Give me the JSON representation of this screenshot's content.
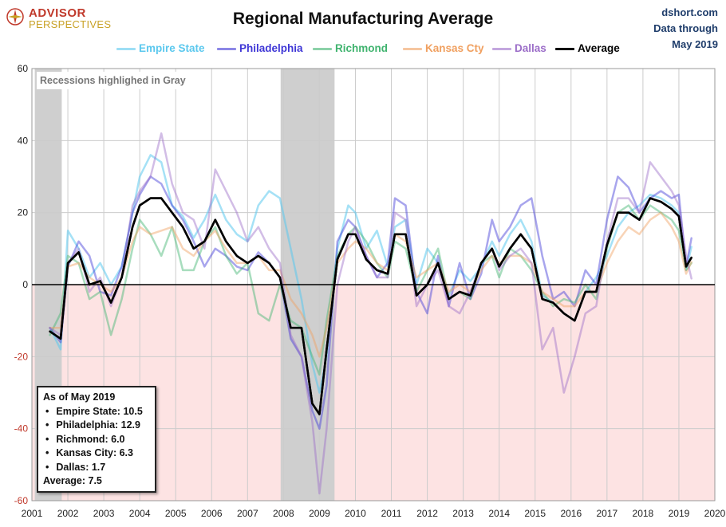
{
  "header": {
    "brand_line1": "ADVISOR",
    "brand_line2": "PERSPECTIVES",
    "title": "Regional Manufacturing Average",
    "source_line1": "dshort.com",
    "source_line2": "Data through",
    "source_line3": "May 2019"
  },
  "recession_note": "Recessions highlighed in Gray",
  "infobox": {
    "heading": "As of May 2019",
    "items": [
      "Empire State: 10.5",
      "Philadelphia: 12.9",
      "Richmond: 6.0",
      "Kansas City: 6.3",
      "Dallas:  1.7"
    ],
    "average": "Average: 7.5"
  },
  "colors": {
    "empire": "#5bc8ee",
    "philadelphia": "#3f37d6",
    "richmond": "#3fb36e",
    "kansas": "#f0a060",
    "dallas": "#9b6dc8",
    "average": "#000000",
    "recession": "#cfcfcf",
    "negative_fill": "#fde3e3",
    "grid": "#cccccc"
  },
  "chart_data": {
    "type": "line",
    "title": "Regional Manufacturing Average",
    "ylim": [
      -60,
      60
    ],
    "xlim": [
      2001,
      2020
    ],
    "yticks": [
      -60,
      -40,
      -20,
      0,
      20,
      40,
      60
    ],
    "xticks": [
      2001,
      2002,
      2003,
      2004,
      2005,
      2006,
      2007,
      2008,
      2009,
      2010,
      2011,
      2012,
      2013,
      2014,
      2015,
      2016,
      2017,
      2018,
      2019,
      2020
    ],
    "grid": true,
    "legend": "top-center",
    "recessions": [
      [
        2001.08,
        2001.83
      ],
      [
        2007.92,
        2009.42
      ]
    ],
    "series": [
      {
        "name": "Empire State",
        "color": "#5bc8ee",
        "opacity": 0.55,
        "width": 2.5,
        "x": [
          2001.5,
          2001.8,
          2002.0,
          2002.3,
          2002.6,
          2002.9,
          2003.2,
          2003.5,
          2003.8,
          2004.0,
          2004.3,
          2004.6,
          2004.9,
          2005.2,
          2005.5,
          2005.8,
          2006.1,
          2006.4,
          2006.7,
          2007.0,
          2007.3,
          2007.6,
          2007.9,
          2008.2,
          2008.5,
          2008.8,
          2009.0,
          2009.2,
          2009.5,
          2009.8,
          2010.0,
          2010.3,
          2010.6,
          2010.9,
          2011.1,
          2011.4,
          2011.7,
          2012.0,
          2012.3,
          2012.6,
          2012.9,
          2013.2,
          2013.5,
          2013.8,
          2014.0,
          2014.3,
          2014.6,
          2014.9,
          2015.2,
          2015.5,
          2015.8,
          2016.1,
          2016.4,
          2016.7,
          2017.0,
          2017.3,
          2017.6,
          2017.9,
          2018.2,
          2018.5,
          2018.8,
          2019.0,
          2019.2,
          2019.35
        ],
        "y": [
          -12,
          -18,
          15,
          10,
          2,
          6,
          0,
          5,
          20,
          30,
          36,
          34,
          22,
          19,
          13,
          18,
          25,
          18,
          14,
          12,
          22,
          26,
          24,
          10,
          -4,
          -22,
          -30,
          -20,
          10,
          22,
          20,
          10,
          15,
          5,
          16,
          18,
          0,
          10,
          6,
          -3,
          4,
          1,
          5,
          12,
          8,
          14,
          18,
          12,
          -3,
          -5,
          -8,
          -10,
          -2,
          2,
          8,
          16,
          20,
          22,
          25,
          24,
          22,
          20,
          4,
          10.5
        ]
      },
      {
        "name": "Philadelphia",
        "color": "#3f37d6",
        "opacity": 0.45,
        "width": 2.5,
        "x": [
          2001.5,
          2001.8,
          2002.0,
          2002.3,
          2002.6,
          2002.9,
          2003.2,
          2003.5,
          2003.8,
          2004.0,
          2004.3,
          2004.6,
          2004.9,
          2005.2,
          2005.5,
          2005.8,
          2006.1,
          2006.4,
          2006.7,
          2007.0,
          2007.3,
          2007.6,
          2007.9,
          2008.2,
          2008.5,
          2008.8,
          2009.0,
          2009.2,
          2009.5,
          2009.8,
          2010.0,
          2010.3,
          2010.6,
          2010.9,
          2011.1,
          2011.4,
          2011.7,
          2012.0,
          2012.3,
          2012.6,
          2012.9,
          2013.2,
          2013.5,
          2013.8,
          2014.0,
          2014.3,
          2014.6,
          2014.9,
          2015.2,
          2015.5,
          2015.8,
          2016.1,
          2016.4,
          2016.7,
          2017.0,
          2017.3,
          2017.6,
          2017.9,
          2018.2,
          2018.5,
          2018.8,
          2019.0,
          2019.2,
          2019.35
        ],
        "y": [
          -12,
          -16,
          5,
          12,
          8,
          -2,
          -3,
          5,
          20,
          25,
          30,
          28,
          22,
          18,
          12,
          5,
          10,
          8,
          5,
          4,
          9,
          6,
          2,
          -15,
          -20,
          -35,
          -40,
          -28,
          12,
          18,
          16,
          8,
          2,
          6,
          24,
          22,
          -2,
          -8,
          8,
          -6,
          6,
          -4,
          3,
          18,
          12,
          16,
          22,
          24,
          8,
          -4,
          -2,
          -6,
          4,
          0,
          18,
          30,
          27,
          20,
          24,
          26,
          24,
          25,
          5,
          12.9
        ]
      },
      {
        "name": "Richmond",
        "color": "#3fb36e",
        "opacity": 0.45,
        "width": 2.5,
        "x": [
          2001.5,
          2001.8,
          2002.0,
          2002.3,
          2002.6,
          2002.9,
          2003.2,
          2003.5,
          2003.8,
          2004.0,
          2004.3,
          2004.6,
          2004.9,
          2005.2,
          2005.5,
          2005.8,
          2006.1,
          2006.4,
          2006.7,
          2007.0,
          2007.3,
          2007.6,
          2007.9,
          2008.2,
          2008.5,
          2008.8,
          2009.0,
          2009.2,
          2009.5,
          2009.8,
          2010.0,
          2010.3,
          2010.6,
          2010.9,
          2011.1,
          2011.4,
          2011.7,
          2012.0,
          2012.3,
          2012.6,
          2012.9,
          2013.2,
          2013.5,
          2013.8,
          2014.0,
          2014.3,
          2014.6,
          2014.9,
          2015.2,
          2015.5,
          2015.8,
          2016.1,
          2016.4,
          2016.7,
          2017.0,
          2017.3,
          2017.6,
          2017.9,
          2018.2,
          2018.5,
          2018.8,
          2019.0,
          2019.2,
          2019.35
        ],
        "y": [
          -14,
          -8,
          8,
          6,
          -4,
          -2,
          -14,
          -4,
          10,
          18,
          14,
          8,
          16,
          4,
          4,
          12,
          16,
          8,
          3,
          6,
          -8,
          -10,
          0,
          -10,
          -12,
          -20,
          -25,
          -10,
          8,
          14,
          16,
          12,
          6,
          2,
          12,
          10,
          -2,
          4,
          10,
          -4,
          -2,
          -4,
          6,
          8,
          2,
          10,
          8,
          4,
          -2,
          -6,
          -4,
          -5,
          0,
          -4,
          10,
          20,
          22,
          18,
          22,
          20,
          18,
          15,
          4,
          6.0
        ]
      },
      {
        "name": "Kansas Cty",
        "color": "#f0a060",
        "opacity": 0.45,
        "width": 2.5,
        "x": [
          2001.5,
          2001.8,
          2002.0,
          2002.3,
          2002.6,
          2002.9,
          2003.2,
          2003.5,
          2003.8,
          2004.0,
          2004.3,
          2004.6,
          2004.9,
          2005.2,
          2005.5,
          2005.8,
          2006.1,
          2006.4,
          2006.7,
          2007.0,
          2007.3,
          2007.6,
          2007.9,
          2008.2,
          2008.5,
          2008.8,
          2009.0,
          2009.2,
          2009.5,
          2009.8,
          2010.0,
          2010.3,
          2010.6,
          2010.9,
          2011.1,
          2011.4,
          2011.7,
          2012.0,
          2012.3,
          2012.6,
          2012.9,
          2013.2,
          2013.5,
          2013.8,
          2014.0,
          2014.3,
          2014.6,
          2014.9,
          2015.2,
          2015.5,
          2015.8,
          2016.1,
          2016.4,
          2016.7,
          2017.0,
          2017.3,
          2017.6,
          2017.9,
          2018.2,
          2018.5,
          2018.8,
          2019.0,
          2019.2,
          2019.35
        ],
        "y": [
          -12,
          -12,
          5,
          6,
          2,
          0,
          -2,
          2,
          12,
          16,
          14,
          15,
          16,
          10,
          8,
          12,
          15,
          10,
          6,
          6,
          8,
          4,
          4,
          -4,
          -8,
          -14,
          -20,
          -12,
          6,
          10,
          12,
          10,
          6,
          4,
          14,
          12,
          2,
          4,
          6,
          -2,
          0,
          -2,
          4,
          8,
          6,
          8,
          8,
          6,
          -2,
          -4,
          -6,
          -6,
          -2,
          -2,
          6,
          12,
          16,
          14,
          18,
          20,
          16,
          12,
          3,
          6.3
        ]
      },
      {
        "name": "Dallas",
        "color": "#9b6dc8",
        "opacity": 0.45,
        "width": 2.5,
        "x": [
          2001.5,
          2001.8,
          2002.0,
          2002.3,
          2002.6,
          2002.9,
          2003.2,
          2003.5,
          2003.8,
          2004.0,
          2004.3,
          2004.6,
          2004.9,
          2005.2,
          2005.5,
          2005.8,
          2006.1,
          2006.4,
          2006.7,
          2007.0,
          2007.3,
          2007.6,
          2007.9,
          2008.2,
          2008.5,
          2008.8,
          2009.0,
          2009.2,
          2009.5,
          2009.8,
          2010.0,
          2010.3,
          2010.6,
          2010.9,
          2011.1,
          2011.4,
          2011.7,
          2012.0,
          2012.3,
          2012.6,
          2012.9,
          2013.2,
          2013.5,
          2013.8,
          2014.0,
          2014.3,
          2014.6,
          2014.9,
          2015.2,
          2015.5,
          2015.8,
          2016.1,
          2016.4,
          2016.7,
          2017.0,
          2017.3,
          2017.6,
          2017.9,
          2018.2,
          2018.5,
          2018.8,
          2019.0,
          2019.2,
          2019.35
        ],
        "y": [
          -12,
          -14,
          6,
          10,
          -2,
          2,
          -6,
          2,
          22,
          26,
          30,
          42,
          28,
          20,
          18,
          10,
          32,
          26,
          20,
          12,
          16,
          10,
          6,
          -14,
          -20,
          -38,
          -58,
          -40,
          0,
          12,
          16,
          8,
          2,
          2,
          20,
          18,
          -6,
          0,
          4,
          -6,
          -8,
          -2,
          6,
          10,
          4,
          8,
          10,
          6,
          -18,
          -12,
          -30,
          -20,
          -8,
          -6,
          12,
          24,
          24,
          20,
          34,
          30,
          26,
          22,
          8,
          1.7
        ]
      },
      {
        "name": "Average",
        "color": "#000000",
        "opacity": 1,
        "width": 2.5,
        "x": [
          2001.5,
          2001.8,
          2002.0,
          2002.3,
          2002.6,
          2002.9,
          2003.2,
          2003.5,
          2003.8,
          2004.0,
          2004.3,
          2004.6,
          2004.9,
          2005.2,
          2005.5,
          2005.8,
          2006.1,
          2006.4,
          2006.7,
          2007.0,
          2007.3,
          2007.6,
          2007.9,
          2008.2,
          2008.5,
          2008.8,
          2009.0,
          2009.2,
          2009.5,
          2009.8,
          2010.0,
          2010.3,
          2010.6,
          2010.9,
          2011.1,
          2011.4,
          2011.7,
          2012.0,
          2012.3,
          2012.6,
          2012.9,
          2013.2,
          2013.5,
          2013.8,
          2014.0,
          2014.3,
          2014.6,
          2014.9,
          2015.2,
          2015.5,
          2015.8,
          2016.1,
          2016.4,
          2016.7,
          2017.0,
          2017.3,
          2017.6,
          2017.9,
          2018.2,
          2018.5,
          2018.8,
          2019.0,
          2019.2,
          2019.35
        ],
        "y": [
          -13,
          -15,
          6,
          9,
          0,
          1,
          -5,
          2,
          16,
          22,
          24,
          24,
          20,
          16,
          10,
          12,
          18,
          12,
          8,
          6,
          8,
          6,
          2,
          -12,
          -12,
          -33,
          -36,
          -18,
          7,
          14,
          14,
          7,
          4,
          3,
          14,
          14,
          -3,
          0,
          6,
          -4,
          -2,
          -3,
          6,
          10,
          5,
          10,
          14,
          10,
          -4,
          -5,
          -8,
          -10,
          -2,
          -2,
          11,
          20,
          20,
          18,
          24,
          23,
          21,
          19,
          5,
          7.5
        ]
      }
    ]
  }
}
